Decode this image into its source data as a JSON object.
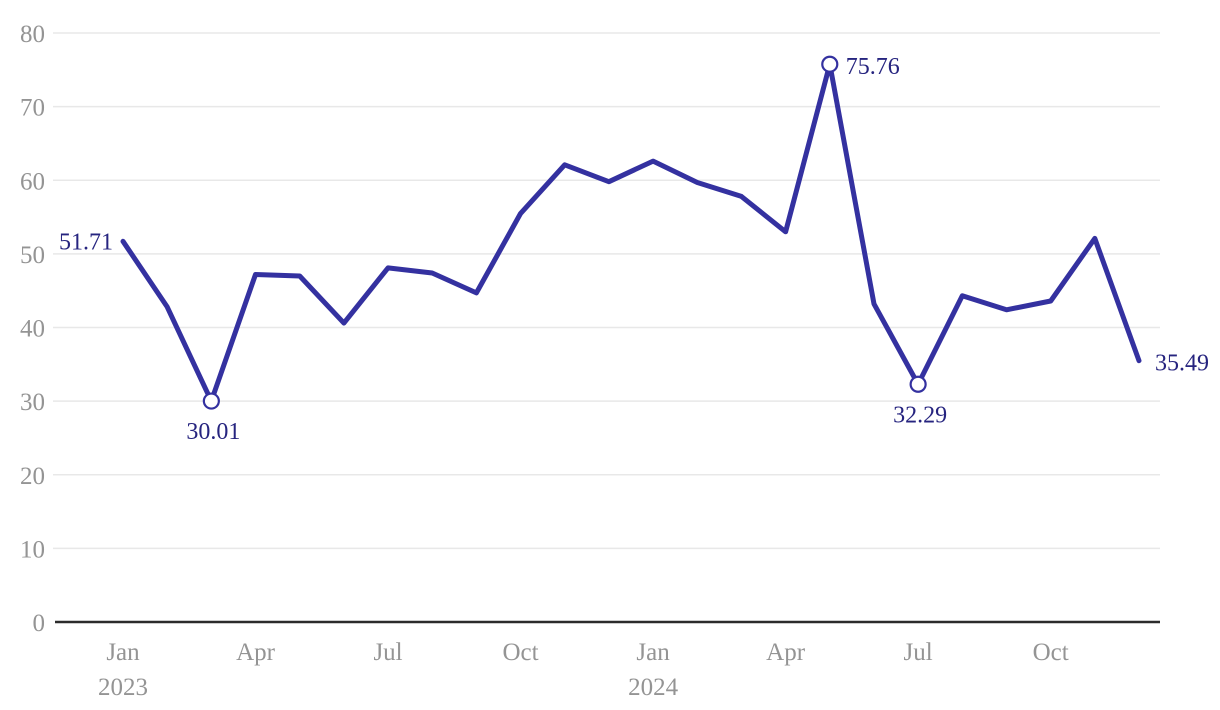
{
  "chart_data": {
    "type": "line",
    "title": "",
    "xlabel": "",
    "ylabel": "",
    "legend": "none",
    "grid": true,
    "ylim": [
      0,
      80
    ],
    "y_ticks": [
      0,
      10,
      20,
      30,
      40,
      50,
      60,
      70,
      80
    ],
    "x": [
      "Jan 2023",
      "Feb 2023",
      "Mar 2023",
      "Apr 2023",
      "May 2023",
      "Jun 2023",
      "Jul 2023",
      "Aug 2023",
      "Sep 2023",
      "Oct 2023",
      "Nov 2023",
      "Dec 2023",
      "Jan 2024",
      "Feb 2024",
      "Mar 2024",
      "Apr 2024",
      "May 2024",
      "Jun 2024",
      "Jul 2024",
      "Aug 2024",
      "Sep 2024",
      "Oct 2024",
      "Nov 2024",
      "Dec 2024"
    ],
    "values": [
      51.71,
      42.8,
      30.01,
      47.2,
      47.0,
      40.6,
      48.1,
      47.4,
      44.7,
      55.5,
      62.1,
      59.8,
      62.6,
      59.7,
      57.8,
      53.0,
      75.76,
      43.2,
      32.29,
      44.3,
      42.4,
      43.6,
      52.1,
      35.49
    ],
    "x_tick_marks": [
      {
        "index": 0,
        "label": "Jan",
        "year": "2023"
      },
      {
        "index": 3,
        "label": "Apr",
        "year": ""
      },
      {
        "index": 6,
        "label": "Jul",
        "year": ""
      },
      {
        "index": 9,
        "label": "Oct",
        "year": ""
      },
      {
        "index": 12,
        "label": "Jan",
        "year": "2024"
      },
      {
        "index": 15,
        "label": "Apr",
        "year": ""
      },
      {
        "index": 18,
        "label": "Jul",
        "year": ""
      },
      {
        "index": 21,
        "label": "Oct",
        "year": ""
      }
    ],
    "annotations": [
      {
        "index": 0,
        "label": "51.71",
        "placement": "left",
        "marker": false
      },
      {
        "index": 2,
        "label": "30.01",
        "placement": "below",
        "marker": true
      },
      {
        "index": 16,
        "label": "75.76",
        "placement": "right",
        "marker": true
      },
      {
        "index": 18,
        "label": "32.29",
        "placement": "below",
        "marker": true
      },
      {
        "index": 23,
        "label": "35.49",
        "placement": "right",
        "marker": false
      }
    ],
    "colors": {
      "line": "#3431A0",
      "annotation_text": "#26247F",
      "axis_text": "#949494",
      "gridline": "#E8E8E8",
      "axis_line": "#2B2B2B",
      "marker_fill": "#FFFFFF",
      "background": "#FFFFFF"
    }
  }
}
